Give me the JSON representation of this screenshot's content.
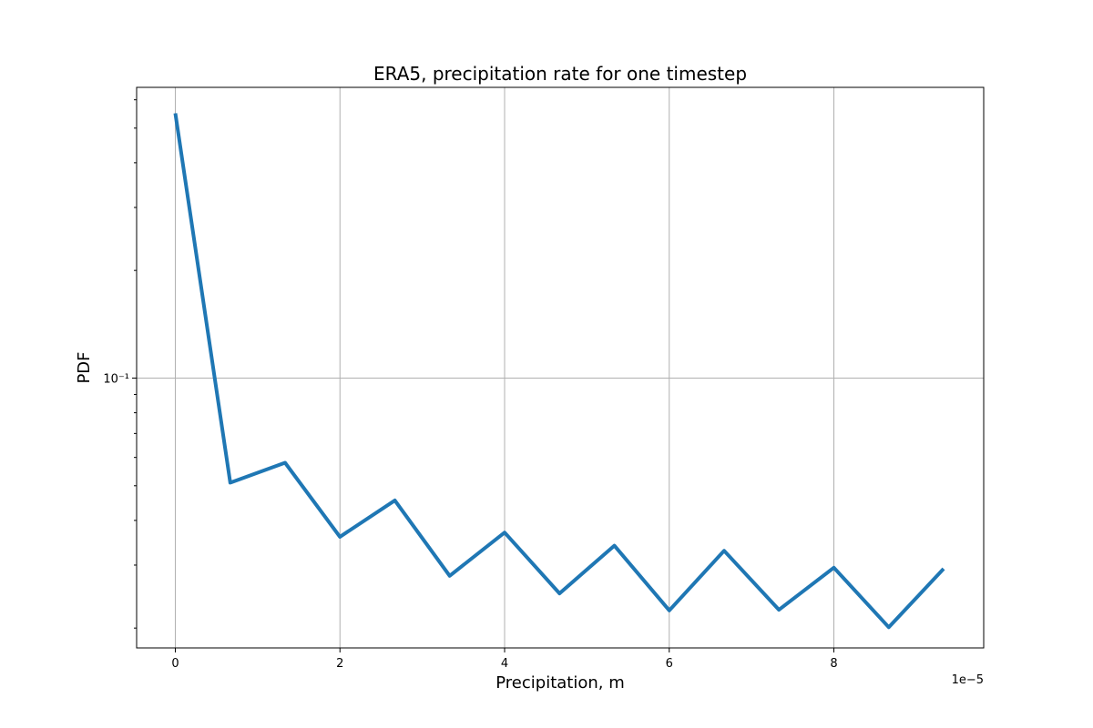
{
  "chart_data": {
    "type": "line",
    "title": "ERA5, precipitation rate for one timestep",
    "xlabel": "Precipitation, m",
    "ylabel": "PDF",
    "x_offset_label": "1e−5",
    "x_scale": "linear",
    "y_scale": "log",
    "xlim": [
      -4.7e-06,
      9.82e-05
    ],
    "ylim": [
      0.0176,
      0.65
    ],
    "grid": true,
    "x_ticks": [
      {
        "value": 0.0,
        "label": "0"
      },
      {
        "value": 2e-05,
        "label": "2"
      },
      {
        "value": 4e-05,
        "label": "4"
      },
      {
        "value": 6e-05,
        "label": "6"
      },
      {
        "value": 8e-05,
        "label": "8"
      }
    ],
    "y_major_ticks": [
      {
        "value": 0.1,
        "label": "10⁻¹"
      }
    ],
    "y_minor_ticks": [
      0.02,
      0.03,
      0.04,
      0.05,
      0.06,
      0.07,
      0.08,
      0.09,
      0.2,
      0.3,
      0.4,
      0.5,
      0.6
    ],
    "series": [
      {
        "color": "#1f77b4",
        "x": [
          0.0,
          6.67e-06,
          1.333e-05,
          2e-05,
          2.667e-05,
          3.333e-05,
          4e-05,
          4.667e-05,
          5.333e-05,
          6e-05,
          6.667e-05,
          7.333e-05,
          8e-05,
          8.667e-05,
          9.333e-05
        ],
        "y": [
          0.55,
          0.051,
          0.058,
          0.036,
          0.0455,
          0.028,
          0.037,
          0.025,
          0.034,
          0.0224,
          0.0329,
          0.0225,
          0.0295,
          0.0201,
          0.0293
        ]
      }
    ]
  }
}
